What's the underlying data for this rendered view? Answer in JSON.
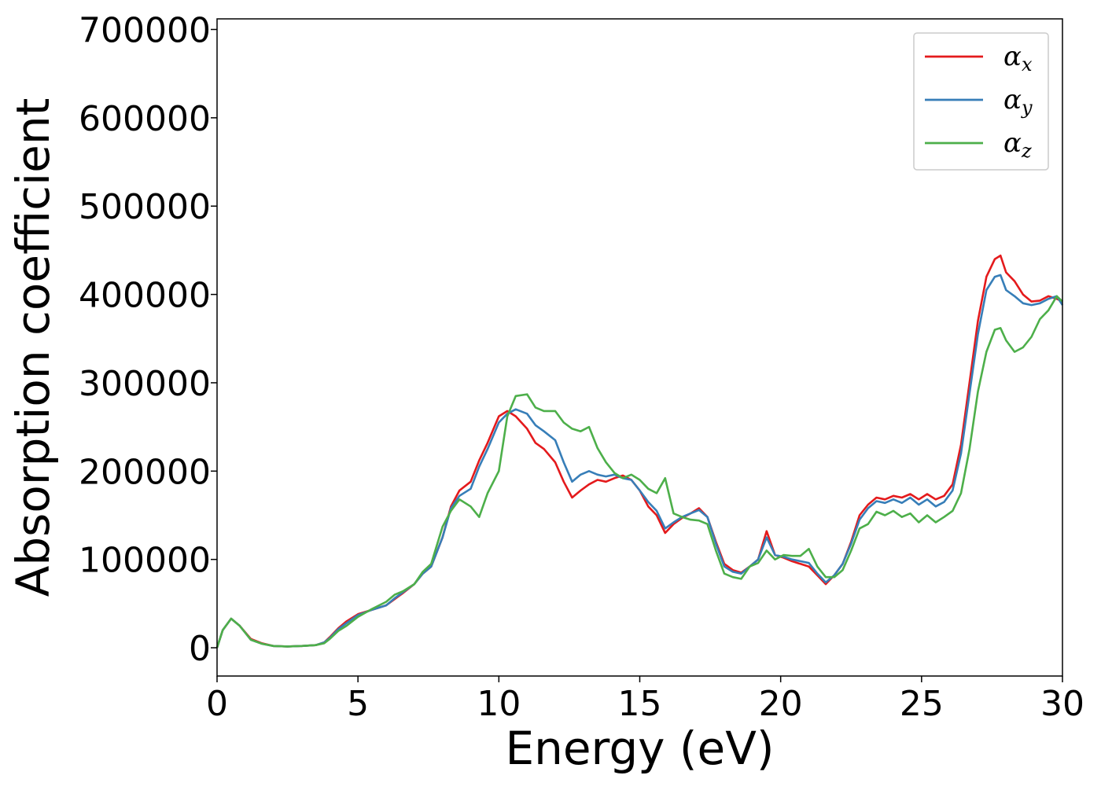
{
  "chart_data": {
    "type": "line",
    "title": "",
    "xlabel": "Energy (eV)",
    "ylabel": "Absorption coefficient",
    "xlim": [
      0,
      30
    ],
    "ylim": [
      -32000,
      712000
    ],
    "xticks": [
      0,
      5,
      10,
      15,
      20,
      25,
      30
    ],
    "yticks": [
      0,
      100000,
      200000,
      300000,
      400000,
      500000,
      600000,
      700000
    ],
    "xtick_labels": [
      "0",
      "5",
      "10",
      "15",
      "20",
      "25",
      "30"
    ],
    "ytick_labels": [
      "0",
      "100000",
      "200000",
      "300000",
      "400000",
      "500000",
      "600000",
      "700000"
    ],
    "grid": false,
    "legend_position": "top-right",
    "series": [
      {
        "name": "αx",
        "name_main": "α",
        "name_sub": "x",
        "color": "#e41a1c",
        "x": [
          0,
          0.2,
          0.5,
          0.8,
          1.2,
          1.6,
          2,
          2.5,
          3,
          3.5,
          3.8,
          4,
          4.3,
          4.6,
          5,
          5.5,
          6,
          6.3,
          6.6,
          7,
          7.3,
          7.6,
          8,
          8.3,
          8.6,
          9,
          9.3,
          9.6,
          10,
          10.3,
          10.6,
          11,
          11.3,
          11.6,
          12,
          12.3,
          12.6,
          12.9,
          13.2,
          13.5,
          13.8,
          14.1,
          14.4,
          14.7,
          15,
          15.3,
          15.6,
          15.9,
          16.2,
          16.5,
          16.8,
          17.1,
          17.4,
          17.7,
          18,
          18.3,
          18.6,
          18.9,
          19.2,
          19.5,
          19.8,
          20.1,
          20.4,
          20.7,
          21,
          21.3,
          21.6,
          21.9,
          22.2,
          22.5,
          22.8,
          23.1,
          23.4,
          23.7,
          24,
          24.3,
          24.6,
          24.9,
          25.2,
          25.5,
          25.8,
          26.1,
          26.4,
          26.7,
          27,
          27.3,
          27.6,
          27.8,
          28,
          28.3,
          28.6,
          28.9,
          29.2,
          29.5,
          29.8,
          30
        ],
        "y": [
          0,
          20000,
          33000,
          25000,
          10000,
          5000,
          2000,
          1500,
          2000,
          3000,
          6000,
          12000,
          22000,
          30000,
          38000,
          43000,
          48000,
          55000,
          62000,
          72000,
          84000,
          92000,
          125000,
          160000,
          178000,
          188000,
          212000,
          232000,
          262000,
          268000,
          262000,
          248000,
          232000,
          225000,
          210000,
          188000,
          170000,
          178000,
          185000,
          190000,
          188000,
          192000,
          195000,
          190000,
          178000,
          160000,
          150000,
          130000,
          140000,
          147000,
          152000,
          158000,
          148000,
          120000,
          95000,
          88000,
          85000,
          92000,
          100000,
          132000,
          105000,
          102000,
          98000,
          95000,
          92000,
          82000,
          72000,
          82000,
          95000,
          120000,
          150000,
          162000,
          170000,
          168000,
          172000,
          170000,
          174000,
          168000,
          174000,
          168000,
          172000,
          185000,
          230000,
          300000,
          370000,
          420000,
          440000,
          444000,
          425000,
          415000,
          400000,
          392000,
          393000,
          398000,
          395000,
          392000
        ]
      },
      {
        "name": "αy",
        "name_main": "α",
        "name_sub": "y",
        "color": "#377eb8",
        "x": [
          0,
          0.2,
          0.5,
          0.8,
          1.2,
          1.6,
          2,
          2.5,
          3,
          3.5,
          3.8,
          4,
          4.3,
          4.6,
          5,
          5.5,
          6,
          6.3,
          6.6,
          7,
          7.3,
          7.6,
          8,
          8.3,
          8.6,
          9,
          9.3,
          9.6,
          10,
          10.3,
          10.6,
          11,
          11.3,
          11.6,
          12,
          12.3,
          12.6,
          12.9,
          13.2,
          13.5,
          13.8,
          14.1,
          14.4,
          14.7,
          15,
          15.3,
          15.6,
          15.9,
          16.2,
          16.5,
          16.8,
          17.1,
          17.4,
          17.7,
          18,
          18.3,
          18.6,
          18.9,
          19.2,
          19.5,
          19.8,
          20.1,
          20.4,
          20.7,
          21,
          21.3,
          21.6,
          21.9,
          22.2,
          22.5,
          22.8,
          23.1,
          23.4,
          23.7,
          24,
          24.3,
          24.6,
          24.9,
          25.2,
          25.5,
          25.8,
          26.1,
          26.4,
          26.7,
          27,
          27.3,
          27.6,
          27.8,
          28,
          28.3,
          28.6,
          28.9,
          29.2,
          29.5,
          29.8,
          30
        ],
        "y": [
          0,
          20000,
          33000,
          25000,
          9000,
          4500,
          2000,
          1500,
          2000,
          3000,
          6000,
          11000,
          21000,
          28000,
          37000,
          43000,
          48000,
          56000,
          63000,
          72000,
          84000,
          92000,
          125000,
          158000,
          172000,
          180000,
          205000,
          225000,
          255000,
          265000,
          270000,
          265000,
          252000,
          245000,
          235000,
          210000,
          188000,
          196000,
          200000,
          196000,
          194000,
          196000,
          192000,
          190000,
          178000,
          165000,
          155000,
          135000,
          142000,
          148000,
          152000,
          156000,
          148000,
          118000,
          92000,
          86000,
          84000,
          92000,
          100000,
          125000,
          105000,
          103000,
          100000,
          98000,
          96000,
          84000,
          74000,
          82000,
          95000,
          118000,
          145000,
          158000,
          166000,
          164000,
          168000,
          164000,
          170000,
          162000,
          168000,
          160000,
          165000,
          178000,
          220000,
          288000,
          355000,
          405000,
          420000,
          422000,
          405000,
          398000,
          390000,
          388000,
          390000,
          395000,
          398000,
          388000
        ]
      },
      {
        "name": "αz",
        "name_main": "α",
        "name_sub": "z",
        "color": "#4daf4a",
        "x": [
          0,
          0.2,
          0.5,
          0.8,
          1.2,
          1.6,
          2,
          2.5,
          3,
          3.5,
          3.8,
          4,
          4.3,
          4.6,
          5,
          5.5,
          6,
          6.3,
          6.6,
          7,
          7.3,
          7.6,
          8,
          8.3,
          8.6,
          9,
          9.3,
          9.6,
          10,
          10.3,
          10.6,
          11,
          11.3,
          11.6,
          12,
          12.3,
          12.6,
          12.9,
          13.2,
          13.5,
          13.8,
          14.1,
          14.4,
          14.7,
          15,
          15.3,
          15.6,
          15.9,
          16.2,
          16.5,
          16.8,
          17.1,
          17.4,
          17.7,
          18,
          18.3,
          18.6,
          18.9,
          19.2,
          19.5,
          19.8,
          20.1,
          20.4,
          20.7,
          21,
          21.3,
          21.6,
          21.9,
          22.2,
          22.5,
          22.8,
          23.1,
          23.4,
          23.7,
          24,
          24.3,
          24.6,
          24.9,
          25.2,
          25.5,
          25.8,
          26.1,
          26.4,
          26.7,
          27,
          27.3,
          27.6,
          27.8,
          28,
          28.3,
          28.6,
          28.9,
          29.2,
          29.5,
          29.8,
          30
        ],
        "y": [
          0,
          20000,
          33000,
          25000,
          9000,
          4500,
          2000,
          1500,
          2000,
          3000,
          5000,
          10000,
          19000,
          25000,
          35000,
          44000,
          52000,
          60000,
          64000,
          72000,
          86000,
          95000,
          137000,
          155000,
          168000,
          160000,
          148000,
          175000,
          200000,
          262000,
          285000,
          287000,
          272000,
          268000,
          268000,
          255000,
          248000,
          245000,
          250000,
          226000,
          210000,
          198000,
          192000,
          196000,
          190000,
          180000,
          175000,
          192000,
          152000,
          148000,
          145000,
          144000,
          140000,
          110000,
          84000,
          80000,
          78000,
          92000,
          96000,
          110000,
          100000,
          105000,
          104000,
          104000,
          112000,
          92000,
          80000,
          80000,
          88000,
          110000,
          135000,
          140000,
          154000,
          150000,
          155000,
          148000,
          152000,
          142000,
          150000,
          142000,
          148000,
          155000,
          175000,
          225000,
          290000,
          335000,
          360000,
          362000,
          348000,
          335000,
          340000,
          352000,
          372000,
          382000,
          398000,
          392000
        ]
      }
    ]
  }
}
